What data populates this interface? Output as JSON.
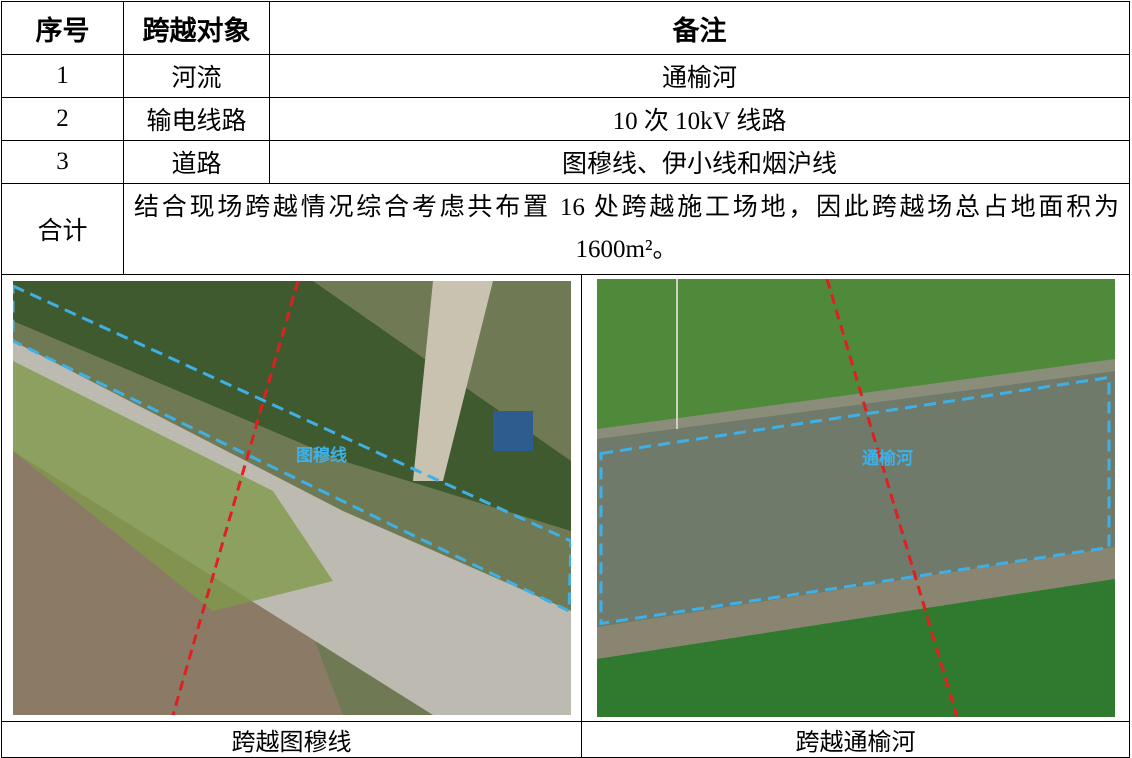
{
  "table": {
    "header": [
      "序号",
      "跨越对象",
      "备注"
    ],
    "rows": [
      [
        "1",
        "河流",
        "通榆河"
      ],
      [
        "2",
        "输电线路",
        "10 次 10kV 线路"
      ],
      [
        "3",
        "道路",
        "图穆线、伊小线和烟沪线"
      ]
    ],
    "total": {
      "label": "合计",
      "note": "结合现场跨越情况综合考虑共布置 16 处跨越施工场地，因此跨越场总占地面积为 1600m²。"
    }
  },
  "images": [
    {
      "overlay_label": "图穆线",
      "caption": "跨越图穆线"
    },
    {
      "overlay_label": "通榆河",
      "caption": "跨越通榆河"
    }
  ]
}
